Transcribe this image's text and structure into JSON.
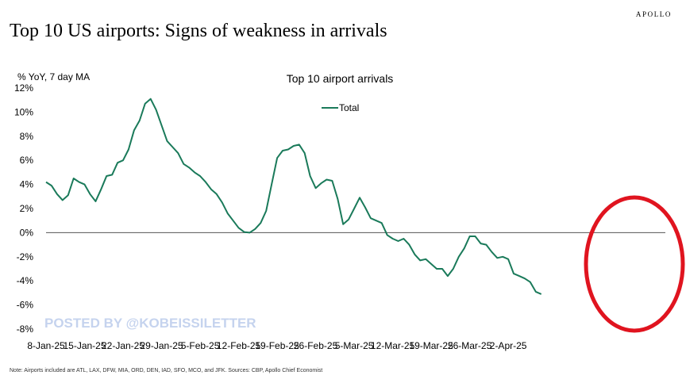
{
  "brand": "APOLLO",
  "headline": "Top 10 US airports: Signs of weakness in arrivals",
  "unit_label": "% YoY, 7 day MA",
  "footnote": "Note: Airports included are ATL, LAX, DFW, MIA, ORD, DEN, IAD, SFO, MCO, and JFK. Sources: CBP, Apollo Chief Economist",
  "watermark": "POSTED BY @KOBEISSILETTER",
  "colors": {
    "series": "#1a7a5a",
    "zero_line": "#555555",
    "highlight_ellipse": "#e0141f"
  },
  "chart_data": {
    "type": "line",
    "title": "Top 10 airport arrivals",
    "ylabel": "% YoY, 7 day MA",
    "xlabel": "",
    "ylim": [
      -8,
      12
    ],
    "yticks": [
      -8,
      -6,
      -4,
      -2,
      0,
      2,
      4,
      6,
      8,
      10,
      12
    ],
    "ytick_labels": [
      "-8%",
      "-6%",
      "-4%",
      "-2%",
      "0%",
      "2%",
      "4%",
      "6%",
      "8%",
      "10%",
      "12%"
    ],
    "xlim": [
      "2025-01-08",
      "2025-04-09"
    ],
    "xticks": [
      "2025-01-08",
      "2025-01-15",
      "2025-01-22",
      "2025-01-29",
      "2025-02-05",
      "2025-02-12",
      "2025-02-19",
      "2025-02-26",
      "2025-03-05",
      "2025-03-12",
      "2025-03-19",
      "2025-03-26",
      "2025-04-02"
    ],
    "xtick_labels": [
      "8-Jan-25",
      "15-Jan-25",
      "22-Jan-25",
      "29-Jan-25",
      "5-Feb-25",
      "12-Feb-25",
      "19-Feb-25",
      "26-Feb-25",
      "5-Mar-25",
      "12-Mar-25",
      "19-Mar-25",
      "26-Mar-25",
      "2-Apr-25"
    ],
    "grid": false,
    "legend": "top-center",
    "series": [
      {
        "name": "Total",
        "x": [
          "2025-01-08",
          "2025-01-09",
          "2025-01-10",
          "2025-01-11",
          "2025-01-12",
          "2025-01-13",
          "2025-01-14",
          "2025-01-15",
          "2025-01-16",
          "2025-01-17",
          "2025-01-18",
          "2025-01-19",
          "2025-01-20",
          "2025-01-21",
          "2025-01-22",
          "2025-01-23",
          "2025-01-24",
          "2025-01-25",
          "2025-01-26",
          "2025-01-27",
          "2025-01-28",
          "2025-01-29",
          "2025-01-30",
          "2025-01-31",
          "2025-02-01",
          "2025-02-02",
          "2025-02-03",
          "2025-02-04",
          "2025-02-05",
          "2025-02-06",
          "2025-02-07",
          "2025-02-08",
          "2025-02-09",
          "2025-02-10",
          "2025-02-11",
          "2025-02-12",
          "2025-02-13",
          "2025-02-14",
          "2025-02-15",
          "2025-02-16",
          "2025-02-17",
          "2025-02-18",
          "2025-02-19",
          "2025-02-20",
          "2025-02-21",
          "2025-02-22",
          "2025-02-23",
          "2025-02-24",
          "2025-02-25",
          "2025-02-26",
          "2025-02-27",
          "2025-02-28",
          "2025-03-01",
          "2025-03-02",
          "2025-03-03",
          "2025-03-04",
          "2025-03-05",
          "2025-03-06",
          "2025-03-07",
          "2025-03-08",
          "2025-03-09",
          "2025-03-10",
          "2025-03-11",
          "2025-03-12",
          "2025-03-13",
          "2025-03-14",
          "2025-03-15",
          "2025-03-16",
          "2025-03-17",
          "2025-03-18",
          "2025-03-19",
          "2025-03-20",
          "2025-03-21",
          "2025-03-22",
          "2025-03-23",
          "2025-03-24",
          "2025-03-25",
          "2025-03-26",
          "2025-03-27",
          "2025-03-28",
          "2025-03-29",
          "2025-03-30",
          "2025-03-31",
          "2025-04-01",
          "2025-04-02",
          "2025-04-03",
          "2025-04-04",
          "2025-04-05",
          "2025-04-06",
          "2025-04-07",
          "2025-04-08"
        ],
        "values": [
          4.2,
          3.9,
          3.2,
          2.7,
          3.1,
          4.5,
          4.2,
          4.0,
          3.2,
          2.6,
          3.6,
          4.7,
          4.8,
          5.8,
          6.0,
          6.9,
          8.5,
          9.3,
          10.7,
          11.1,
          10.2,
          8.9,
          7.6,
          7.1,
          6.6,
          5.7,
          5.4,
          5.0,
          4.7,
          4.2,
          3.6,
          3.2,
          2.5,
          1.6,
          1.0,
          0.4,
          0.05,
          0.0,
          0.3,
          0.8,
          1.8,
          4.0,
          6.2,
          6.8,
          6.9,
          7.2,
          7.3,
          6.6,
          4.7,
          3.7,
          4.1,
          4.4,
          4.3,
          2.8,
          0.7,
          1.1,
          2.0,
          2.9,
          2.1,
          1.2,
          1.0,
          0.8,
          -0.2,
          -0.5,
          -0.7,
          -0.5,
          -1.0,
          -1.8,
          -2.3,
          -2.2,
          -2.6,
          -3.0,
          -3.0,
          -3.6,
          -3.0,
          -2.0,
          -1.3,
          -0.3,
          -0.3,
          -0.9,
          -1.0,
          -1.6,
          -2.1,
          -2.0,
          -2.2,
          -3.4,
          -3.6,
          -3.8,
          -4.1,
          -4.9,
          -5.1
        ]
      }
    ]
  }
}
